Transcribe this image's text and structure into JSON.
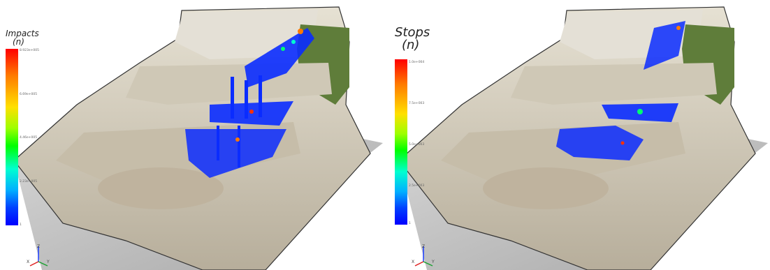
{
  "panels": [
    {
      "legend": {
        "title": "Impacts",
        "unit": "(n)",
        "ticks": [
          "8.923e+005",
          "6.69e+005",
          "4.46e+005",
          "2.23e+005",
          "1"
        ]
      },
      "axes": {
        "x": "X",
        "y": "Y",
        "z": "Z"
      }
    },
    {
      "legend": {
        "title": "Stops",
        "unit": "(n)",
        "ticks": [
          "1.0e+004",
          "7.5e+003",
          "5.0e+003",
          "2.5e+003",
          "1"
        ]
      },
      "axes": {
        "x": "X",
        "y": "Y",
        "z": "Z"
      }
    }
  ],
  "colors": {
    "terrain_light": "#d9d3c4",
    "terrain_dark": "#9c9484",
    "vegetation": "#5d7a3b",
    "ground_plane": "#c8c8c8",
    "trajectory_blue": "#0a2cff"
  }
}
